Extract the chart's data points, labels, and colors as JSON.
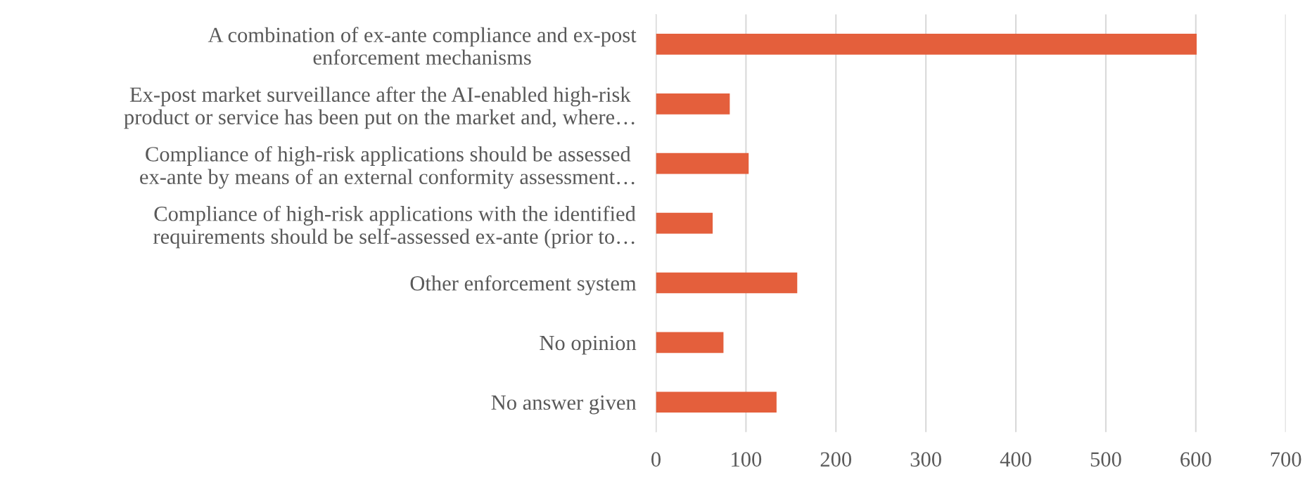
{
  "chart_data": {
    "type": "bar",
    "orientation": "horizontal",
    "categories": [
      "A combination of ex-ante compliance and ex-post\nenforcement mechanisms",
      "Ex-post market surveillance after the AI-enabled high-risk\nproduct or service has been put on the market and, where…",
      "Compliance of high-risk applications should be assessed\nex-ante by means of an external conformity assessment…",
      "Compliance of high-risk applications with the identified\nrequirements should be self-assessed ex-ante (prior to…",
      "Other enforcement system",
      "No opinion",
      "No answer given"
    ],
    "values": [
      601,
      82,
      103,
      63,
      157,
      75,
      134
    ],
    "color": "#e45f3c",
    "xlim": [
      0,
      700
    ],
    "xticks": [
      0,
      100,
      200,
      300,
      400,
      500,
      600,
      700
    ],
    "grid": "x"
  }
}
